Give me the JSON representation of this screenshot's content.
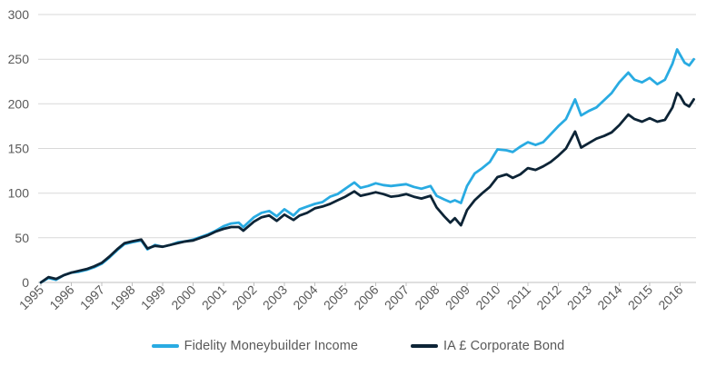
{
  "chart_data": {
    "type": "line",
    "title": "",
    "xlabel": "",
    "ylabel": "",
    "ylim": [
      0,
      300
    ],
    "xlim": [
      1995,
      2016.8
    ],
    "grid": "horizontal",
    "legend_position": "bottom",
    "y_ticks": [
      0,
      50,
      100,
      150,
      200,
      250,
      300
    ],
    "x_tick_labels": [
      "1995",
      "1996",
      "1997",
      "1998",
      "1999",
      "2000",
      "2001",
      "2002",
      "2003",
      "2004",
      "2005",
      "2006",
      "2007",
      "2008",
      "2009",
      "2010",
      "2011",
      "2012",
      "2013",
      "2014",
      "2015",
      "2016"
    ],
    "x": [
      1995,
      1995.25,
      1995.5,
      1995.75,
      1996,
      1996.25,
      1996.5,
      1996.75,
      1997,
      1997.25,
      1997.5,
      1997.75,
      1998,
      1998.3,
      1998.5,
      1998.75,
      1999,
      1999.25,
      1999.5,
      1999.75,
      2000,
      2000.25,
      2000.5,
      2000.75,
      2001,
      2001.25,
      2001.5,
      2001.65,
      2002,
      2002.25,
      2002.5,
      2002.75,
      2003,
      2003.3,
      2003.5,
      2003.75,
      2004,
      2004.25,
      2004.5,
      2004.75,
      2005,
      2005.3,
      2005.5,
      2005.75,
      2006,
      2006.25,
      2006.5,
      2006.75,
      2007,
      2007.25,
      2007.5,
      2007.8,
      2008,
      2008.25,
      2008.45,
      2008.6,
      2008.8,
      2009,
      2009.25,
      2009.5,
      2009.75,
      2010,
      2010.3,
      2010.5,
      2010.75,
      2011,
      2011.25,
      2011.5,
      2011.75,
      2012,
      2012.25,
      2012.55,
      2012.75,
      2013,
      2013.25,
      2013.5,
      2013.75,
      2014,
      2014.3,
      2014.5,
      2014.75,
      2015,
      2015.25,
      2015.5,
      2015.75,
      2015.9,
      2016,
      2016.15,
      2016.3,
      2016.45
    ],
    "series": [
      {
        "name": "Fidelity Moneybuilder Income",
        "color": "#29abe2",
        "values": [
          0,
          5,
          3,
          8,
          11,
          12,
          14,
          17,
          21,
          28,
          36,
          43,
          45,
          47,
          37,
          42,
          40,
          42,
          45,
          46,
          48,
          51,
          54,
          58,
          63,
          66,
          67,
          62,
          73,
          78,
          80,
          74,
          82,
          75,
          82,
          85,
          88,
          90,
          96,
          99,
          105,
          112,
          106,
          108,
          111,
          109,
          108,
          109,
          110,
          107,
          105,
          108,
          97,
          93,
          90,
          92,
          89,
          108,
          122,
          128,
          135,
          149,
          148,
          146,
          152,
          157,
          154,
          157,
          166,
          175,
          183,
          205,
          187,
          192,
          196,
          204,
          212,
          224,
          235,
          227,
          224,
          229,
          222,
          227,
          245,
          261,
          255,
          246,
          243,
          250
        ]
      },
      {
        "name": "IA £ Corporate Bond",
        "color": "#0d2436",
        "values": [
          0,
          6,
          4,
          8,
          11,
          13,
          15,
          18,
          22,
          29,
          37,
          44,
          46,
          48,
          38,
          41,
          40,
          42,
          44,
          46,
          47,
          50,
          53,
          57,
          60,
          62,
          62,
          58,
          68,
          73,
          75,
          69,
          76,
          70,
          75,
          78,
          83,
          85,
          88,
          92,
          96,
          102,
          97,
          99,
          101,
          99,
          96,
          97,
          99,
          96,
          94,
          97,
          84,
          74,
          67,
          72,
          64,
          81,
          92,
          100,
          107,
          118,
          121,
          117,
          121,
          128,
          126,
          130,
          135,
          142,
          150,
          169,
          151,
          156,
          161,
          164,
          168,
          176,
          188,
          183,
          180,
          184,
          180,
          182,
          196,
          212,
          209,
          200,
          197,
          205
        ]
      }
    ]
  },
  "colors": {
    "grid": "#d9d9d9",
    "axis": "#bfbfbf",
    "text": "#595959",
    "background": "#ffffff"
  }
}
